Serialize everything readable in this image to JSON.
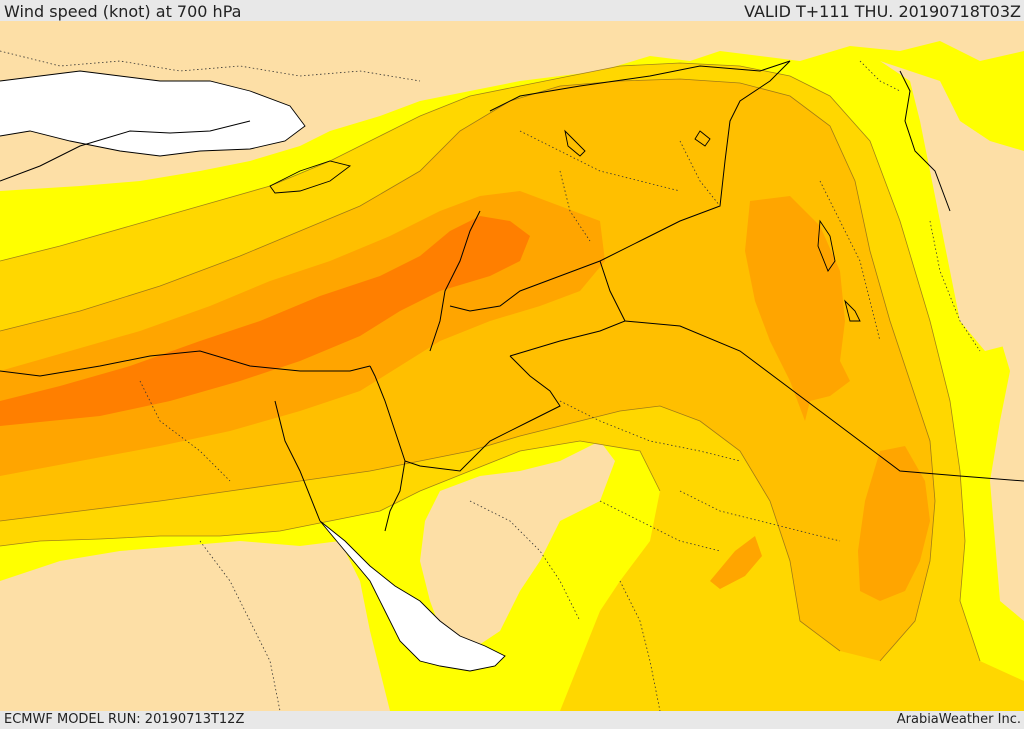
{
  "header": {
    "title": "Wind speed (knot) at 700 hPa",
    "valid_time": "VALID T+111 THU. 20190718T03Z"
  },
  "footer": {
    "model_run": "ECMWF MODEL RUN: 20190713T12Z",
    "credit": "ArabiaWeather Inc."
  },
  "map": {
    "shading_colors": {
      "calm": "#fddfa6",
      "light": "#ffff00",
      "moderate": "#ffd700",
      "fresh": "#ffbf00",
      "strong": "#ffa500",
      "very_strong": "#ff7f00",
      "water_no_data": "#ffffff"
    },
    "boundary_color": "#000000"
  }
}
